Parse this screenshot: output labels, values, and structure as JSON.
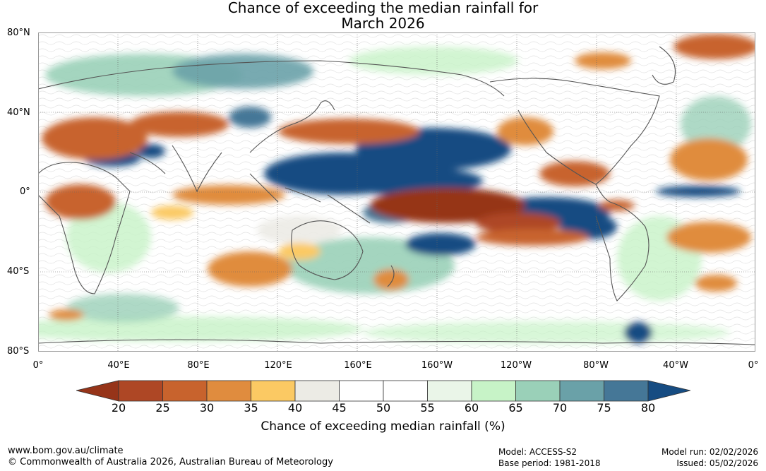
{
  "title": {
    "line1": "Chance of exceeding the median rainfall for",
    "line2": "March 2026"
  },
  "map": {
    "lat_labels": [
      "80°N",
      "40°N",
      "0°",
      "40°S",
      "80°S"
    ],
    "lon_labels": [
      "0°",
      "40°E",
      "80°E",
      "120°E",
      "160°E",
      "160°W",
      "120°W",
      "80°W",
      "40°W",
      "0°"
    ]
  },
  "colorbar": {
    "ticks": [
      "20",
      "25",
      "30",
      "35",
      "40",
      "45",
      "50",
      "55",
      "60",
      "65",
      "70",
      "75",
      "80"
    ],
    "low_color": "#963419",
    "high_color": "#164c82",
    "colors": [
      "#ae4725",
      "#c8632d",
      "#e08c3e",
      "#fbc963",
      "#ecebe5",
      "#ffffff",
      "#ffffff",
      "#eaf5e8",
      "#c7f3c7",
      "#9ad0b8",
      "#6aa1a8",
      "#457797"
    ],
    "title": "Chance of exceeding median rainfall (%)"
  },
  "footer": {
    "website": "www.bom.gov.au/climate",
    "copyright": "© Commonwealth of Australia 2026, Australian Bureau of Meteorology",
    "model": "Model: ACCESS-S2",
    "base_period": "Base period: 1981-2018",
    "model_run": "Model run: 02/02/2026",
    "issued": "Issued: 05/02/2026"
  }
}
